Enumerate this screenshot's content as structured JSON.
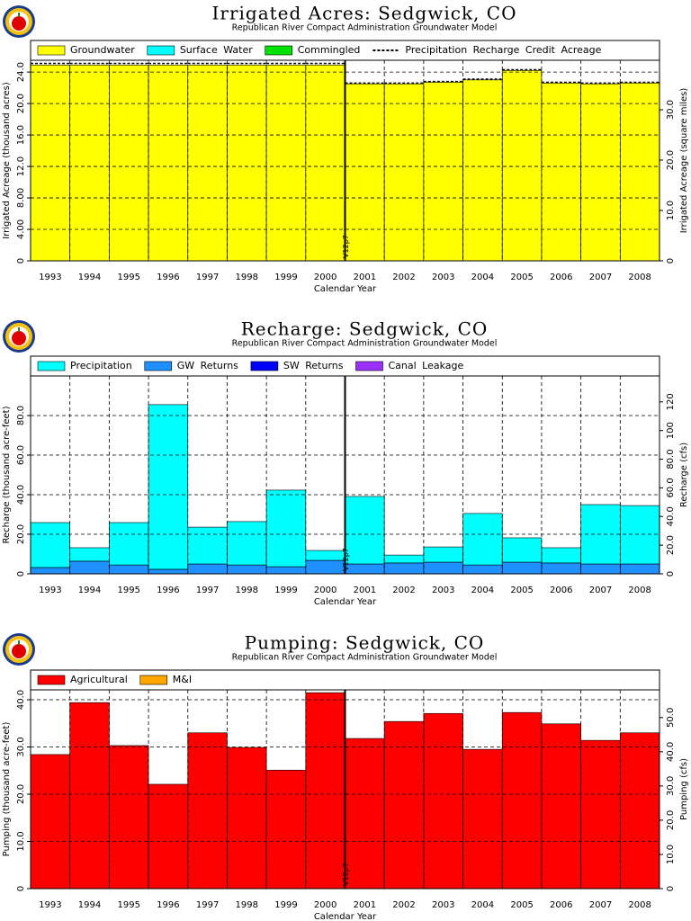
{
  "chart_data": [
    {
      "type": "bar",
      "title": "Irrigated Acres: Sedgwick, CO",
      "subtitle": "Republican River Compact Administration Groundwater Model",
      "x_label": "Calendar Year",
      "y_label": "Irrigated Acreage (thousand acres)",
      "y2_label": "Irrigated Acreage (square miles)",
      "annotation": "V12p7",
      "categories": [
        "1993",
        "1994",
        "1995",
        "1996",
        "1997",
        "1998",
        "1999",
        "2000",
        "2001",
        "2002",
        "2003",
        "2004",
        "2005",
        "2006",
        "2007",
        "2008"
      ],
      "series": [
        {
          "name": "Groundwater",
          "color": "#ffff00",
          "values": [
            24.9,
            24.9,
            24.9,
            24.9,
            24.9,
            24.9,
            24.9,
            24.9,
            22.5,
            22.5,
            22.7,
            23.0,
            24.2,
            22.6,
            22.5,
            22.6
          ]
        },
        {
          "name": "Surface Water",
          "color": "#00ffff",
          "values": [
            0,
            0,
            0,
            0,
            0,
            0,
            0,
            0,
            0,
            0,
            0,
            0,
            0,
            0,
            0,
            0
          ]
        },
        {
          "name": "Commingled",
          "color": "#00e000",
          "values": [
            0,
            0,
            0,
            0,
            0,
            0,
            0,
            0,
            0,
            0,
            0,
            0,
            0,
            0,
            0,
            0
          ]
        },
        {
          "name": "Precipitation Recharge Credit Acreage",
          "color": "#000000",
          "line_style": "dashed",
          "values": [
            25.1,
            25.1,
            25.1,
            25.1,
            25.1,
            25.1,
            25.1,
            25.1,
            22.6,
            22.6,
            22.8,
            23.1,
            24.3,
            22.7,
            22.6,
            22.7
          ]
        }
      ],
      "ylim": [
        0,
        25.5
      ],
      "yticks": [
        0,
        {
          "value": 4,
          "label": "4.00"
        },
        {
          "value": 8,
          "label": "8.00"
        },
        {
          "value": 12,
          "label": "12.0"
        },
        {
          "value": 16,
          "label": "16.0"
        },
        {
          "value": 20,
          "label": "20.0"
        },
        {
          "value": 24,
          "label": "24.0"
        }
      ],
      "y2lim": [
        0,
        39.84
      ],
      "y2ticks": [
        0,
        {
          "value": 10,
          "label": "10.0"
        },
        {
          "value": 20,
          "label": "20.0"
        },
        {
          "value": 30,
          "label": "30.0"
        }
      ],
      "grid": true
    },
    {
      "type": "bar",
      "title": "Recharge: Sedgwick, CO",
      "subtitle": "Republican River Compact Administration Groundwater Model",
      "x_label": "Calendar Year",
      "y_label": "Recharge (thousand acre-feet)",
      "y2_label": "Recharge (cfs)",
      "annotation": "V12p7",
      "categories": [
        "1993",
        "1994",
        "1995",
        "1996",
        "1997",
        "1998",
        "1999",
        "2000",
        "2001",
        "2002",
        "2003",
        "2004",
        "2005",
        "2006",
        "2007",
        "2008"
      ],
      "series": [
        {
          "name": "GW Returns",
          "color": "#1e90ff",
          "values": [
            3.2,
            6.4,
            4.5,
            2.3,
            5.0,
            4.5,
            3.6,
            6.8,
            5.0,
            5.5,
            5.9,
            4.5,
            5.9,
            5.5,
            5.0,
            5.0
          ]
        },
        {
          "name": "SW Returns",
          "color": "#0000ff",
          "values": [
            0,
            0,
            0,
            0,
            0,
            0,
            0,
            0,
            0,
            0,
            0,
            0,
            0,
            0,
            0,
            0
          ]
        },
        {
          "name": "Canal Leakage",
          "color": "#9b30ff",
          "values": [
            0,
            0,
            0,
            0,
            0,
            0,
            0,
            0,
            0,
            0,
            0,
            0,
            0,
            0,
            0,
            0
          ]
        },
        {
          "name": "Precipitation",
          "color": "#00ffff",
          "values": [
            22.7,
            6.8,
            21.4,
            83.2,
            18.6,
            21.9,
            38.7,
            5.0,
            34.1,
            4.0,
            7.7,
            26.0,
            12.3,
            7.7,
            30.0,
            29.5
          ]
        }
      ],
      "legend_order": [
        3,
        0,
        1,
        2
      ],
      "ylim": [
        0,
        100
      ],
      "yticks": [
        0,
        {
          "value": 20,
          "label": "20.0"
        },
        {
          "value": 40,
          "label": "40.0"
        },
        {
          "value": 60,
          "label": "60.0"
        },
        {
          "value": 80,
          "label": "80.0"
        }
      ],
      "y2lim": [
        0,
        138.1
      ],
      "y2ticks": [
        0,
        {
          "value": 20,
          "label": "20.0"
        },
        {
          "value": 40,
          "label": "40.0"
        },
        {
          "value": 60,
          "label": "60.0"
        },
        {
          "value": 80,
          "label": "80.0"
        },
        100,
        120
      ],
      "grid": true
    },
    {
      "type": "bar",
      "title": "Pumping: Sedgwick, CO",
      "subtitle": "Republican River Compact Administration Groundwater Model",
      "x_label": "Calendar Year",
      "y_label": "Pumping (thousand acre-feet)",
      "y2_label": "Pumping (cfs)",
      "annotation": "V12p7",
      "categories": [
        "1993",
        "1994",
        "1995",
        "1996",
        "1997",
        "1998",
        "1999",
        "2000",
        "2001",
        "2002",
        "2003",
        "2004",
        "2005",
        "2006",
        "2007",
        "2008"
      ],
      "series": [
        {
          "name": "Agricultural",
          "color": "#ff0000",
          "values": [
            28.4,
            39.4,
            30.3,
            22.1,
            33.0,
            29.9,
            25.1,
            41.5,
            31.8,
            35.4,
            37.1,
            29.5,
            37.3,
            34.9,
            31.4,
            33.0
          ]
        },
        {
          "name": "M&I",
          "color": "#ffa500",
          "values": [
            0,
            0,
            0,
            0,
            0,
            0,
            0,
            0,
            0,
            0,
            0,
            0,
            0,
            0,
            0,
            0
          ]
        }
      ],
      "ylim": [
        0,
        42.1
      ],
      "yticks": [
        0,
        {
          "value": 10,
          "label": "10.0"
        },
        {
          "value": 20,
          "label": "20.0"
        },
        {
          "value": 30,
          "label": "30.0"
        },
        {
          "value": 40,
          "label": "40.0"
        }
      ],
      "y2lim": [
        0,
        58.1
      ],
      "y2ticks": [
        0,
        {
          "value": 10,
          "label": "10.0"
        },
        {
          "value": 20,
          "label": "20.0"
        },
        {
          "value": 30,
          "label": "30.0"
        },
        {
          "value": 40,
          "label": "40.0"
        },
        {
          "value": 50,
          "label": "50.0"
        }
      ],
      "grid": true
    }
  ]
}
